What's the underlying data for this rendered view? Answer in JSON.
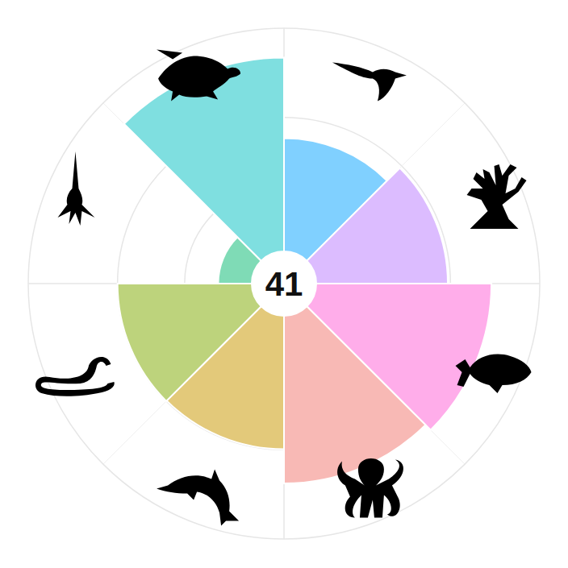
{
  "chart_data": {
    "type": "polar_bar",
    "title": "41",
    "categories": [
      null,
      null,
      null,
      null,
      null,
      null,
      null,
      null
    ],
    "values": [
      1.69,
      1.96,
      2.61,
      2.5,
      1.99,
      2.0,
      0.5,
      2.89
    ],
    "colors": [
      "#80d0ff",
      "#dcbcff",
      "#ffadea",
      "#f8b9b5",
      "#e3c97a",
      "#bdd37c",
      "#7fdbb6",
      "#7fdfe0"
    ],
    "ylim": [
      0,
      3.33
    ],
    "yticks": [
      1,
      2
    ],
    "grid": true,
    "tick_labels": false
  }
}
